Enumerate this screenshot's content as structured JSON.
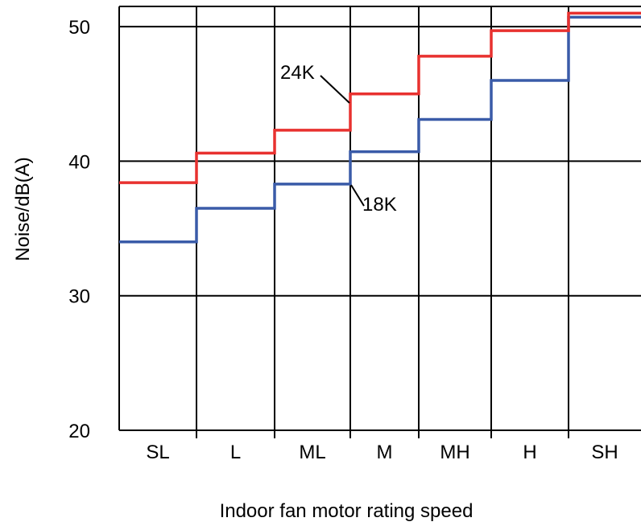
{
  "chart_data": {
    "type": "line",
    "step": true,
    "title": "",
    "xlabel": "Indoor fan motor rating speed",
    "ylabel": "Noise/dB(A)",
    "categories": [
      "SL",
      "L",
      "ML",
      "M",
      "MH",
      "H",
      "SH"
    ],
    "ylim": [
      20,
      51.5
    ],
    "yticks": [
      20,
      30,
      40,
      50
    ],
    "grid": true,
    "series": [
      {
        "name": "24K",
        "color": "#e8312f",
        "values": [
          38.4,
          40.6,
          42.3,
          45.0,
          47.8,
          49.7,
          51.0
        ]
      },
      {
        "name": "18K",
        "color": "#3a5ba8",
        "values": [
          34.0,
          36.5,
          38.3,
          40.7,
          43.1,
          46.0,
          50.7
        ]
      }
    ]
  }
}
